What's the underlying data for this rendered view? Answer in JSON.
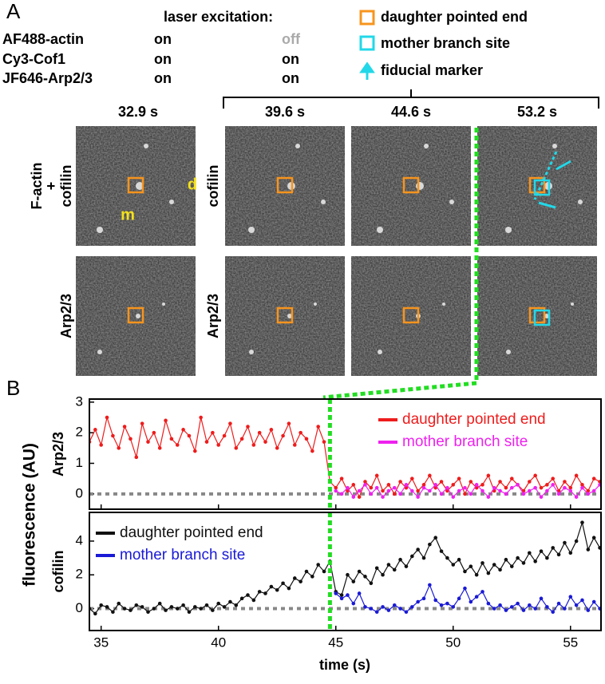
{
  "panel_a": {
    "label": "A",
    "excitation_header": "laser excitation:",
    "channels": [
      {
        "name": "AF488-actin",
        "state1": "on",
        "state2": "off"
      },
      {
        "name": "Cy3-Cof1",
        "state1": "on",
        "state2": "on"
      },
      {
        "name": "JF646-Arp2/3",
        "state1": "on",
        "state2": "on"
      }
    ],
    "legend": [
      {
        "label": "daughter pointed end"
      },
      {
        "label": "mother branch site"
      },
      {
        "label": "fiducial marker"
      }
    ],
    "times": [
      "32.9 s",
      "39.6 s",
      "44.6 s",
      "53.2 s"
    ],
    "row_labels_left": [
      [
        "F-actin",
        "+",
        "cofilin"
      ],
      [
        "Arp2/3"
      ]
    ],
    "row_labels_mid": [
      "cofilin",
      "Arp2/3"
    ],
    "image_marks": [
      "m",
      "d"
    ]
  },
  "panel_b": {
    "label": "B",
    "y_label": "fluorescence (AU)",
    "x_label": "time (s)"
  },
  "chart_data": [
    {
      "type": "line",
      "y_label": "Arp2/3",
      "xlim": [
        34.5,
        56.3
      ],
      "xticks": [
        35,
        40,
        45,
        50,
        55
      ],
      "ylim": [
        -0.5,
        3.1
      ],
      "yticks": [
        0,
        1,
        2,
        3
      ],
      "legend": "upper right",
      "zero_line": true,
      "event_x": 44.75,
      "x": [
        34.5,
        34.75,
        35,
        35.25,
        35.5,
        35.75,
        36,
        36.25,
        36.5,
        36.75,
        37,
        37.25,
        37.5,
        37.75,
        38,
        38.25,
        38.5,
        38.75,
        39,
        39.25,
        39.5,
        39.75,
        40,
        40.25,
        40.5,
        40.75,
        41,
        41.25,
        41.5,
        41.75,
        42,
        42.25,
        42.5,
        42.75,
        43,
        43.25,
        43.5,
        43.75,
        44,
        44.25,
        44.5,
        44.75,
        45,
        45.25,
        45.5,
        45.75,
        46,
        46.25,
        46.5,
        46.75,
        47,
        47.25,
        47.5,
        47.75,
        48,
        48.25,
        48.5,
        48.75,
        49,
        49.25,
        49.5,
        49.75,
        50,
        50.25,
        50.5,
        50.75,
        51,
        51.25,
        51.5,
        51.75,
        52,
        52.25,
        52.5,
        52.75,
        53,
        53.25,
        53.5,
        53.75,
        54,
        54.25,
        54.5,
        54.75,
        55,
        55.25,
        55.5,
        55.75,
        56,
        56.25
      ],
      "series": [
        {
          "name": "daughter pointed end",
          "color": "#ee1c1c",
          "values": [
            1.7,
            2.1,
            1.6,
            2.5,
            1.9,
            1.5,
            2.2,
            1.8,
            1.2,
            2.3,
            1.7,
            2.0,
            1.5,
            2.4,
            1.8,
            1.6,
            2.1,
            1.9,
            1.4,
            2.5,
            1.7,
            2.0,
            1.6,
            1.9,
            2.3,
            1.5,
            1.8,
            2.2,
            1.6,
            2.0,
            1.7,
            2.1,
            1.5,
            1.9,
            2.3,
            1.6,
            2.0,
            1.8,
            1.4,
            2.2,
            1.7,
            0.4,
            0.2,
            0.5,
            0.1,
            0.3,
            -0.1,
            0.4,
            0.2,
            0.6,
            0.1,
            0.3,
            0.0,
            0.4,
            0.2,
            0.5,
            0.1,
            0.3,
            0.6,
            0.2,
            0.4,
            0.1,
            0.3,
            0.5,
            0.0,
            0.4,
            0.2,
            0.3,
            0.6,
            0.1,
            0.4,
            0.2,
            0.5,
            0.3,
            0.1,
            0.4,
            0.6,
            0.2,
            0.3,
            0.5,
            0.1,
            0.4,
            0.2,
            0.6,
            0.3,
            0.1,
            0.5,
            0.4
          ]
        },
        {
          "name": "mother branch site",
          "color": "#ee22ee",
          "values": [
            null,
            null,
            null,
            null,
            null,
            null,
            null,
            null,
            null,
            null,
            null,
            null,
            null,
            null,
            null,
            null,
            null,
            null,
            null,
            null,
            null,
            null,
            null,
            null,
            null,
            null,
            null,
            null,
            null,
            null,
            null,
            null,
            null,
            null,
            null,
            null,
            null,
            null,
            null,
            null,
            null,
            null,
            0.1,
            0.0,
            0.2,
            -0.1,
            0.1,
            0.3,
            0.0,
            0.2,
            -0.1,
            0.1,
            0.2,
            0.0,
            0.3,
            0.1,
            -0.1,
            0.2,
            0.1,
            0.3,
            0.0,
            0.2,
            -0.1,
            0.1,
            0.2,
            0.0,
            0.3,
            0.1,
            -0.1,
            0.2,
            0.1,
            0.0,
            0.2,
            0.3,
            0.0,
            0.1,
            0.2,
            -0.1,
            0.1,
            0.3,
            0.0,
            0.2,
            0.1,
            -0.1,
            0.2,
            0.0,
            0.1,
            0.3
          ]
        }
      ]
    },
    {
      "type": "line",
      "y_label": "cofilin",
      "xlim": [
        34.5,
        56.3
      ],
      "xticks": [
        35,
        40,
        45,
        50,
        55
      ],
      "ylim": [
        -1.3,
        5.7
      ],
      "yticks": [
        0,
        2,
        4
      ],
      "legend": "upper left",
      "zero_line": true,
      "event_x": 44.75,
      "x": [
        34.5,
        34.75,
        35,
        35.25,
        35.5,
        35.75,
        36,
        36.25,
        36.5,
        36.75,
        37,
        37.25,
        37.5,
        37.75,
        38,
        38.25,
        38.5,
        38.75,
        39,
        39.25,
        39.5,
        39.75,
        40,
        40.25,
        40.5,
        40.75,
        41,
        41.25,
        41.5,
        41.75,
        42,
        42.25,
        42.5,
        42.75,
        43,
        43.25,
        43.5,
        43.75,
        44,
        44.25,
        44.5,
        44.75,
        45,
        45.25,
        45.5,
        45.75,
        46,
        46.25,
        46.5,
        46.75,
        47,
        47.25,
        47.5,
        47.75,
        48,
        48.25,
        48.5,
        48.75,
        49,
        49.25,
        49.5,
        49.75,
        50,
        50.25,
        50.5,
        50.75,
        51,
        51.25,
        51.5,
        51.75,
        52,
        52.25,
        52.5,
        52.75,
        53,
        53.25,
        53.5,
        53.75,
        54,
        54.25,
        54.5,
        54.75,
        55,
        55.25,
        55.5,
        55.75,
        56,
        56.25
      ],
      "series": [
        {
          "name": "daughter pointed end",
          "color": "#111111",
          "values": [
            0.0,
            -0.3,
            0.2,
            0.1,
            -0.2,
            0.3,
            0.0,
            -0.1,
            0.2,
            0.1,
            -0.2,
            0.0,
            0.3,
            -0.1,
            0.1,
            0.0,
            0.2,
            -0.2,
            0.1,
            0.0,
            0.2,
            -0.1,
            0.3,
            0.1,
            0.4,
            0.2,
            0.6,
            0.8,
            0.5,
            1.0,
            0.9,
            1.3,
            1.1,
            1.5,
            1.2,
            1.8,
            1.6,
            2.2,
            1.9,
            2.6,
            2.2,
            2.8,
            1.0,
            0.8,
            2.0,
            1.6,
            2.2,
            1.9,
            1.5,
            2.4,
            2.0,
            2.6,
            2.3,
            2.9,
            2.5,
            3.1,
            3.5,
            3.0,
            3.8,
            4.2,
            3.4,
            3.0,
            2.6,
            2.9,
            2.2,
            2.5,
            2.0,
            2.7,
            2.1,
            2.6,
            2.3,
            2.9,
            2.5,
            3.0,
            2.7,
            3.3,
            2.8,
            3.4,
            3.0,
            3.6,
            3.2,
            3.9,
            3.3,
            4.0,
            5.1,
            3.5,
            4.2,
            3.6
          ]
        },
        {
          "name": "mother branch site",
          "color": "#1a1ad6",
          "values": [
            null,
            null,
            null,
            null,
            null,
            null,
            null,
            null,
            null,
            null,
            null,
            null,
            null,
            null,
            null,
            null,
            null,
            null,
            null,
            null,
            null,
            null,
            null,
            null,
            null,
            null,
            null,
            null,
            null,
            null,
            null,
            null,
            null,
            null,
            null,
            null,
            null,
            null,
            null,
            null,
            null,
            null,
            0.9,
            0.6,
            0.8,
            0.3,
            0.9,
            0.1,
            0.0,
            -0.2,
            0.1,
            -0.1,
            0.2,
            0.0,
            -0.2,
            0.1,
            0.4,
            0.6,
            1.4,
            0.5,
            0.2,
            0.3,
            0.1,
            0.6,
            1.2,
            0.4,
            0.7,
            1.0,
            0.3,
            0.0,
            0.2,
            -0.1,
            0.1,
            0.3,
            -0.1,
            0.2,
            0.0,
            0.6,
            0.1,
            -0.2,
            0.3,
            0.0,
            0.7,
            0.2,
            0.5,
            -0.1,
            0.4,
            0.0
          ]
        }
      ]
    }
  ]
}
